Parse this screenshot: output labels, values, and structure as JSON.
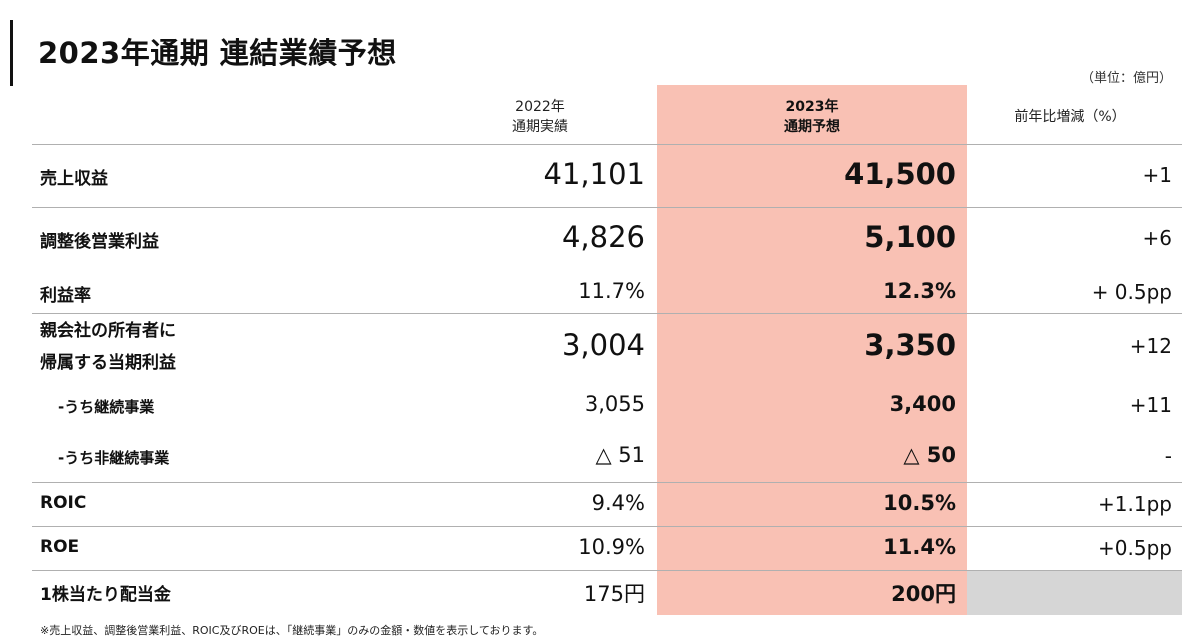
{
  "title": "2023年通期 連結業績予想",
  "unit": "（単位：億円）",
  "headers": {
    "col2022_line1": "2022年",
    "col2022_line2": "通期実績",
    "col2023_line1": "2023年",
    "col2023_line2": "通期予想",
    "change": "前年比増減（%）"
  },
  "rows": [
    {
      "label": "売上収益",
      "v2022": "41,101",
      "v2023": "41,500",
      "change": "+1"
    },
    {
      "label": "調整後営業利益",
      "v2022": "4,826",
      "v2023": "5,100",
      "change": "+6"
    },
    {
      "label": "利益率",
      "v2022": "11.7%",
      "v2023": "12.3%",
      "change": "+ 0.5pp"
    },
    {
      "label_line1": "親会社の所有者に",
      "label_line2": "帰属する当期利益",
      "v2022": "3,004",
      "v2023": "3,350",
      "change": "+12"
    },
    {
      "label": "-うち継続事業",
      "v2022": "3,055",
      "v2023": "3,400",
      "change": "+11"
    },
    {
      "label": "-うち非継続事業",
      "v2022": "△ 51",
      "v2023": "△ 50",
      "change": "-"
    },
    {
      "label": "ROIC",
      "v2022": "9.4%",
      "v2023": "10.5%",
      "change": "+1.1pp"
    },
    {
      "label": "ROE",
      "v2022": "10.9%",
      "v2023": "11.4%",
      "change": "+0.5pp"
    },
    {
      "label": "1株当たり配当金",
      "v2022": "175円",
      "v2023": "200円",
      "change": ""
    }
  ],
  "footnote": "※売上収益、調整後営業利益、ROIC及びROEは、「継続事業」のみの金額・数値を表示しております。",
  "colors": {
    "forecast_column": "#f9c1b4",
    "empty_cell": "#d6d6d6"
  }
}
